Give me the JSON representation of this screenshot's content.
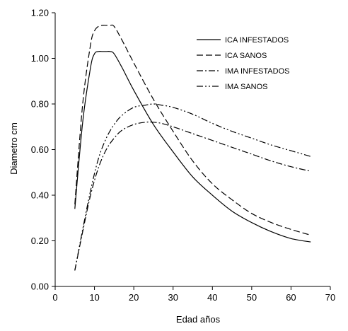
{
  "chart_data": {
    "type": "line",
    "title": "",
    "xlabel": "Edad  años",
    "ylabel": "Diametro cm",
    "xlim": [
      0,
      70
    ],
    "ylim": [
      0,
      1.2
    ],
    "x_ticks": [
      0,
      10,
      20,
      30,
      40,
      50,
      60,
      70
    ],
    "x_tick_labels": [
      "0",
      "10",
      "20",
      "30",
      "40",
      "50",
      "60",
      "70"
    ],
    "y_ticks": [
      0,
      0.2,
      0.4,
      0.6,
      0.8,
      1.0,
      1.2
    ],
    "y_tick_labels": [
      "0.00",
      "0.20",
      "0.40",
      "0.60",
      "0.80",
      "1.00",
      "1.20"
    ],
    "grid": false,
    "legend_position": "top-right",
    "colors": {
      "line": "#000000",
      "axis": "#000000"
    },
    "series": [
      {
        "name": "ICA INFESTADOS",
        "style": "solid",
        "x": [
          5,
          7,
          9,
          10,
          11,
          12,
          13,
          14,
          15,
          17,
          20,
          25,
          30,
          35,
          40,
          45,
          50,
          55,
          60,
          65
        ],
        "y": [
          0.34,
          0.72,
          0.96,
          1.02,
          1.03,
          1.03,
          1.03,
          1.03,
          1.02,
          0.96,
          0.86,
          0.71,
          0.59,
          0.48,
          0.4,
          0.33,
          0.28,
          0.24,
          0.21,
          0.195
        ]
      },
      {
        "name": "ICA SANOS",
        "style": "dashed",
        "x": [
          5,
          7,
          9,
          10,
          11,
          12,
          13,
          14,
          15,
          17,
          20,
          25,
          30,
          35,
          40,
          45,
          50,
          55,
          60,
          65
        ],
        "y": [
          0.36,
          0.8,
          1.06,
          1.12,
          1.14,
          1.145,
          1.145,
          1.145,
          1.14,
          1.08,
          0.98,
          0.82,
          0.68,
          0.55,
          0.45,
          0.38,
          0.32,
          0.28,
          0.25,
          0.225
        ]
      },
      {
        "name": "IMA INFESTADOS",
        "style": "dash-dot",
        "x": [
          5,
          7,
          9,
          11,
          13,
          15,
          17,
          20,
          23,
          25,
          27,
          30,
          35,
          40,
          45,
          50,
          55,
          60,
          65
        ],
        "y": [
          0.07,
          0.24,
          0.4,
          0.52,
          0.6,
          0.65,
          0.685,
          0.71,
          0.72,
          0.72,
          0.715,
          0.7,
          0.67,
          0.64,
          0.61,
          0.58,
          0.55,
          0.525,
          0.505
        ]
      },
      {
        "name": "IMA SANOS",
        "style": "dash-dot-dot",
        "x": [
          5,
          7,
          9,
          11,
          13,
          15,
          17,
          20,
          23,
          25,
          27,
          30,
          35,
          40,
          45,
          50,
          55,
          60,
          65
        ],
        "y": [
          0.07,
          0.25,
          0.42,
          0.56,
          0.65,
          0.71,
          0.75,
          0.785,
          0.795,
          0.8,
          0.795,
          0.785,
          0.755,
          0.715,
          0.68,
          0.65,
          0.62,
          0.595,
          0.57
        ]
      }
    ]
  }
}
